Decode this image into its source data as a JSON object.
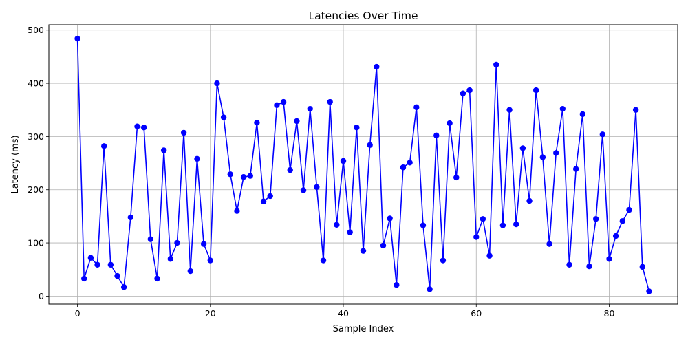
{
  "chart_data": {
    "type": "line",
    "title": "Latencies Over Time",
    "xlabel": "Sample Index",
    "ylabel": "Latency (ms)",
    "xlim": [
      -4.3,
      90.3
    ],
    "ylim": [
      -15,
      510
    ],
    "xticks": [
      0,
      20,
      40,
      60,
      80
    ],
    "yticks": [
      0,
      100,
      200,
      300,
      400,
      500
    ],
    "grid": true,
    "legend": "none",
    "series": [
      {
        "color": "#0000ff",
        "marker": "circle",
        "x": [
          0,
          1,
          2,
          3,
          4,
          5,
          6,
          7,
          8,
          9,
          10,
          11,
          12,
          13,
          14,
          15,
          16,
          17,
          18,
          19,
          20,
          21,
          22,
          23,
          24,
          25,
          26,
          27,
          28,
          29,
          30,
          31,
          32,
          33,
          34,
          35,
          36,
          37,
          38,
          39,
          40,
          41,
          42,
          43,
          44,
          45,
          46,
          47,
          48,
          49,
          50,
          51,
          52,
          53,
          54,
          55,
          56,
          57,
          58,
          59,
          60,
          61,
          62,
          63,
          64,
          65,
          66,
          67,
          68,
          69,
          70,
          71,
          72,
          73,
          74,
          75,
          76,
          77,
          78,
          79,
          80,
          81,
          82,
          83,
          84,
          85,
          86
        ],
        "values": [
          484,
          33,
          72,
          59,
          282,
          59,
          38,
          17,
          148,
          319,
          317,
          107,
          33,
          274,
          70,
          100,
          307,
          47,
          258,
          98,
          67,
          400,
          336,
          229,
          160,
          224,
          226,
          326,
          178,
          188,
          359,
          365,
          237,
          329,
          199,
          352,
          205,
          67,
          365,
          134,
          254,
          120,
          317,
          85,
          284,
          431,
          95,
          146,
          21,
          242,
          251,
          355,
          133,
          13,
          302,
          67,
          325,
          223,
          381,
          387,
          111,
          145,
          76,
          435,
          133,
          350,
          135,
          278,
          179,
          387,
          261,
          98,
          269,
          352,
          59,
          239,
          342,
          56,
          145,
          304,
          70,
          113,
          141,
          162,
          350,
          55,
          9
        ]
      }
    ]
  }
}
